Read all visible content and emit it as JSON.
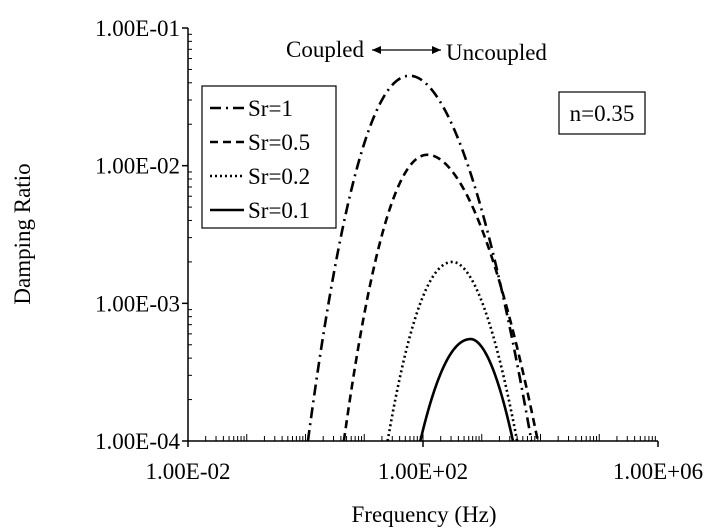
{
  "chart_data": {
    "type": "line",
    "title": "",
    "xlabel": "Frequency (Hz)",
    "ylabel": "Damping Ratio",
    "x_scale": "log",
    "y_scale": "log",
    "xlim": [
      0.01,
      1000000
    ],
    "ylim": [
      0.0001,
      0.1
    ],
    "x_ticks": [
      {
        "value": 0.01,
        "label": "1.00E-02"
      },
      {
        "value": 100,
        "label": "1.00E+02"
      },
      {
        "value": 1000000,
        "label": "1.00E+06"
      }
    ],
    "y_ticks": [
      {
        "value": 0.0001,
        "label": "1.00E-04"
      },
      {
        "value": 0.001,
        "label": "1.00E-03"
      },
      {
        "value": 0.01,
        "label": "1.00E-02"
      },
      {
        "value": 0.1,
        "label": "1.00E-01"
      }
    ],
    "legend_position": "top-left",
    "series": [
      {
        "name": "Sr=1",
        "style": "dash-dot",
        "peak_x": 60,
        "peak_y": 0.045,
        "x_start": 1.1,
        "x_end": 7000,
        "x": [
          1.1,
          10,
          30,
          60,
          100,
          300,
          1000,
          3000,
          7000
        ],
        "y": [
          0.00015,
          0.0043,
          0.021,
          0.045,
          0.04,
          0.0135,
          0.0026,
          0.00055,
          0.0002
        ]
      },
      {
        "name": "Sr=0.5",
        "style": "dashed",
        "peak_x": 120,
        "peak_y": 0.012,
        "x_start": 4.5,
        "x_end": 9000,
        "x": [
          4.5,
          20,
          60,
          120,
          200,
          500,
          1500,
          4000,
          9000
        ],
        "y": [
          0.0001,
          0.0016,
          0.0075,
          0.012,
          0.011,
          0.0045,
          0.001,
          0.00028,
          0.0001
        ]
      },
      {
        "name": "Sr=0.2",
        "style": "dotted",
        "peak_x": 320,
        "peak_y": 0.002,
        "x_start": 25,
        "x_end": 4000,
        "x": [
          25,
          70,
          150,
          320,
          500,
          1000,
          2000,
          4000
        ],
        "y": [
          0.0001,
          0.00045,
          0.0012,
          0.002,
          0.0018,
          0.00095,
          0.00033,
          0.0001
        ]
      },
      {
        "name": "Sr=0.1",
        "style": "solid",
        "peak_x": 650,
        "peak_y": 0.00055,
        "x_start": 90,
        "x_end": 3400,
        "x": [
          90,
          200,
          400,
          650,
          900,
          1500,
          2500,
          3400
        ],
        "y": [
          0.0001,
          0.00025,
          0.00048,
          0.00055,
          0.0005,
          0.00032,
          0.00015,
          0.0001
        ]
      }
    ],
    "annotations": {
      "coupled": "Coupled",
      "uncoupled": "Uncoupled",
      "param": "n=0.35"
    }
  }
}
